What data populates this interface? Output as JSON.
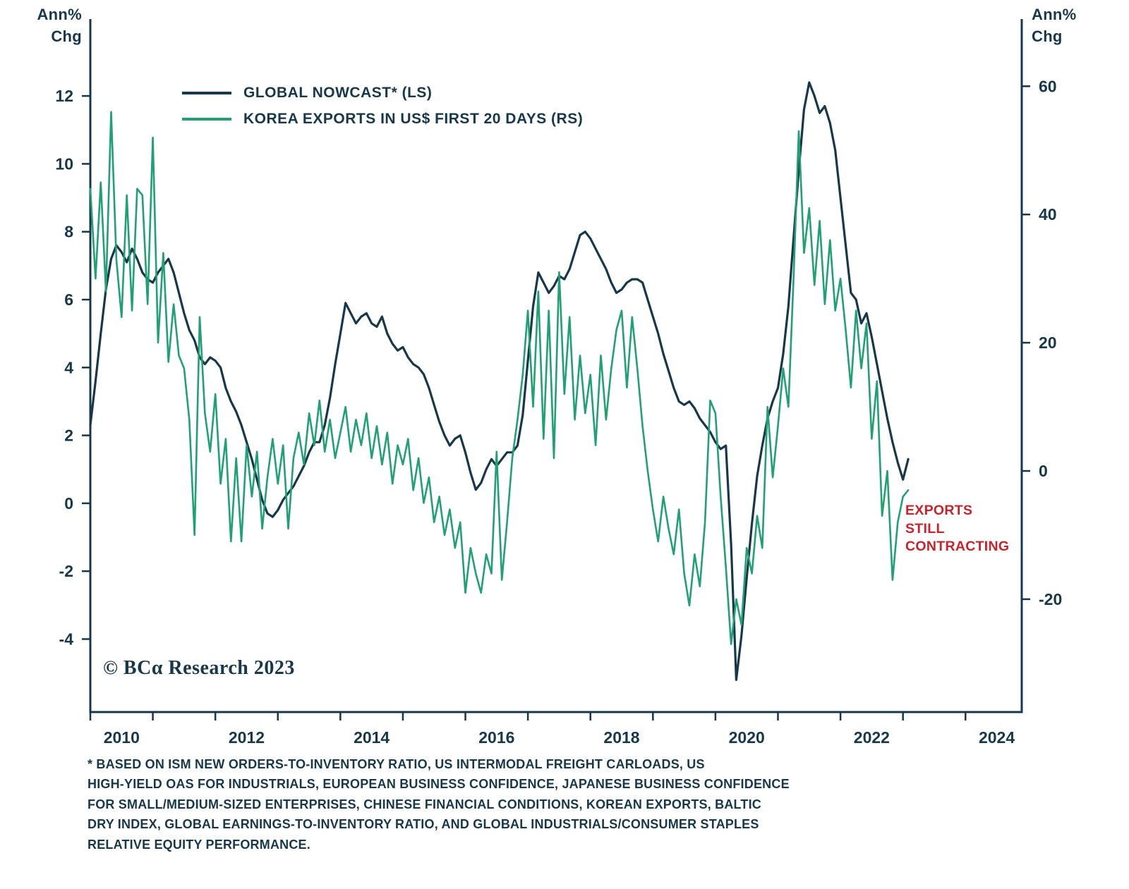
{
  "header": {
    "left_axis_title": "Ann%\nChg",
    "right_axis_title": "Ann%\nChg"
  },
  "annotation": {
    "text": "EXPORTS\nSTILL\nCONTRACTING",
    "color": "#c8232b"
  },
  "branding": {
    "copyright": "© BCα Research 2023"
  },
  "footnote": {
    "text": "* BASED ON ISM NEW ORDERS-TO-INVENTORY RATIO, US INTERMODAL FREIGHT CARLOADS, US\nHIGH-YIELD OAS FOR INDUSTRIALS, EUROPEAN BUSINESS CONFIDENCE, JAPANESE BUSINESS CONFIDENCE\nFOR SMALL/MEDIUM-SIZED ENTERPRISES, CHINESE FINANCIAL CONDITIONS, KOREAN EXPORTS, BALTIC\nDRY INDEX, GLOBAL EARNINGS-TO-INVENTORY RATIO, AND GLOBAL INDUSTRIALS/CONSUMER STAPLES\nRELATIVE EQUITY PERFORMANCE."
  },
  "chart_data": {
    "type": "line",
    "title": "",
    "grid": false,
    "legend_position": "top-left-inside",
    "x_axis": {
      "range": [
        2010.0,
        2024.9
      ],
      "tick_years": [
        2010,
        2011,
        2012,
        2013,
        2014,
        2015,
        2016,
        2017,
        2018,
        2019,
        2020,
        2021,
        2022,
        2023,
        2024
      ],
      "label_years": [
        2010,
        2012,
        2014,
        2016,
        2018,
        2020,
        2022,
        2024
      ],
      "label_offset": 0.5
    },
    "left_axis": {
      "title": "Ann% Chg",
      "ticks": [
        12,
        10,
        8,
        6,
        4,
        2,
        0,
        -2,
        -4
      ],
      "range": [
        -6.15,
        14.1
      ]
    },
    "right_axis": {
      "title": "Ann% Chg",
      "ticks": [
        60,
        40,
        20,
        0,
        -20
      ],
      "range": [
        -37.6,
        69.6
      ]
    },
    "style": {
      "axis_color": "#16384a"
    },
    "series": [
      {
        "name": "GLOBAL NOWCAST* (LS)",
        "dom_name": "global-nowcast-line",
        "axis": "left",
        "color": "#16384a",
        "width": 3.2,
        "frequency": "monthly",
        "start_year": 2010,
        "monthly_values": [
          2.3,
          3.6,
          5.0,
          6.3,
          7.2,
          7.6,
          7.4,
          7.1,
          7.5,
          7.2,
          6.8,
          6.6,
          6.5,
          6.8,
          7.0,
          7.2,
          6.8,
          6.2,
          5.6,
          5.1,
          4.8,
          4.3,
          4.1,
          4.3,
          4.2,
          4.0,
          3.4,
          3.0,
          2.7,
          2.3,
          1.8,
          1.3,
          0.7,
          0.1,
          -0.3,
          -0.4,
          -0.2,
          0.1,
          0.3,
          0.5,
          0.8,
          1.1,
          1.5,
          1.8,
          1.8,
          2.3,
          3.1,
          4.1,
          5.0,
          5.9,
          5.6,
          5.3,
          5.5,
          5.6,
          5.3,
          5.2,
          5.5,
          5.0,
          4.7,
          4.5,
          4.6,
          4.3,
          4.1,
          4.0,
          3.8,
          3.4,
          2.9,
          2.4,
          2.0,
          1.7,
          1.9,
          2.0,
          1.5,
          0.9,
          0.4,
          0.6,
          1.0,
          1.3,
          1.1,
          1.3,
          1.5,
          1.5,
          1.7,
          2.6,
          4.2,
          5.8,
          6.8,
          6.5,
          6.2,
          6.4,
          6.7,
          6.6,
          6.9,
          7.4,
          7.9,
          8.0,
          7.8,
          7.5,
          7.2,
          6.9,
          6.5,
          6.2,
          6.3,
          6.5,
          6.6,
          6.6,
          6.5,
          6.0,
          5.5,
          5.0,
          4.4,
          3.9,
          3.4,
          3.0,
          2.9,
          3.0,
          2.8,
          2.5,
          2.3,
          2.1,
          1.8,
          1.6,
          1.7,
          -1.2,
          -5.2,
          -3.9,
          -2.2,
          -0.6,
          0.8,
          1.7,
          2.5,
          3.0,
          3.4,
          4.4,
          5.8,
          7.8,
          9.8,
          11.6,
          12.4,
          12.0,
          11.5,
          11.7,
          11.2,
          10.4,
          9.0,
          7.6,
          6.2,
          6.0,
          5.3,
          5.6,
          4.9,
          4.1,
          3.3,
          2.5,
          1.8,
          1.2,
          0.7,
          1.3
        ]
      },
      {
        "name": "KOREA EXPORTS IN US$ FIRST 20 DAYS (RS)",
        "dom_name": "korea-exports-line",
        "axis": "right",
        "color": "#1fa173",
        "width": 2.6,
        "frequency": "monthly",
        "start_year": 2010,
        "monthly_values": [
          44,
          30,
          45,
          28,
          56,
          33,
          24,
          43,
          25,
          44,
          43,
          26,
          52,
          20,
          34,
          17,
          26,
          18,
          16,
          8,
          -10,
          24,
          9,
          3,
          12,
          -2,
          5,
          -11,
          2,
          -11,
          4,
          -4,
          3,
          -9,
          -1,
          5,
          -2,
          4,
          -9,
          2,
          6,
          1,
          9,
          4,
          11,
          3,
          8,
          2,
          6,
          10,
          3,
          8,
          4,
          9,
          2,
          7,
          1,
          6,
          -2,
          4,
          1,
          5,
          -3,
          2,
          -5,
          -1,
          -8,
          -4,
          -10,
          -6,
          -12,
          -8,
          -19,
          -12,
          -16,
          -19,
          -13,
          -16,
          3,
          -17,
          -8,
          2,
          8,
          15,
          25,
          10,
          28,
          5,
          25,
          2,
          31,
          12,
          24,
          8,
          18,
          9,
          15,
          4,
          18,
          8,
          16,
          22,
          25,
          13,
          24,
          16,
          7,
          0,
          -6,
          -11,
          -4,
          -9,
          -13,
          -6,
          -16,
          -21,
          -13,
          -18,
          -8,
          11,
          9,
          -4,
          -15,
          -27,
          -20,
          -24,
          -12,
          -16,
          -7,
          -12,
          10,
          -1,
          7,
          16,
          10,
          30,
          53,
          34,
          41,
          29,
          39,
          26,
          36,
          25,
          30,
          22,
          13,
          25,
          16,
          23,
          5,
          14,
          -7,
          0,
          -17,
          -8,
          -4,
          -3
        ]
      }
    ]
  }
}
